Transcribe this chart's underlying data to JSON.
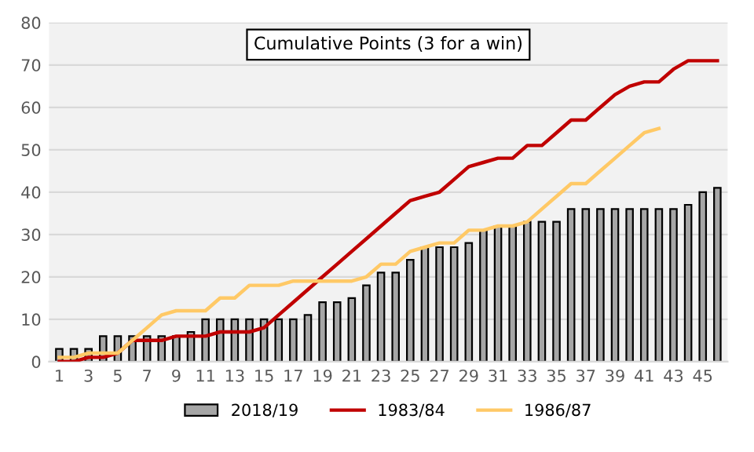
{
  "chart_data": {
    "type": "bar",
    "title": "Cumulative Points (3 for a win)",
    "categories": [
      "1",
      null,
      "3",
      null,
      "5",
      null,
      "7",
      null,
      "9",
      null,
      "11",
      null,
      "13",
      null,
      "15",
      null,
      "17",
      null,
      "19",
      null,
      "21",
      null,
      "23",
      null,
      "25",
      null,
      "27",
      null,
      "29",
      null,
      "31",
      null,
      "33",
      null,
      "35",
      null,
      "37",
      null,
      "39",
      null,
      "41",
      null,
      "43",
      null,
      "45",
      null
    ],
    "series": [
      {
        "name": "2018/19",
        "color": "#a6a6a6",
        "values": [
          3,
          3,
          3,
          6,
          6,
          6,
          6,
          6,
          6,
          7,
          10,
          10,
          10,
          10,
          10,
          10,
          10,
          11,
          14,
          14,
          15,
          18,
          21,
          21,
          24,
          27,
          27,
          27,
          28,
          31,
          32,
          32,
          33,
          33,
          33,
          36,
          36,
          36,
          36,
          36,
          36,
          36,
          36,
          37,
          40,
          41
        ]
      },
      {
        "name": "1983/84",
        "type": "line",
        "color": "#c00000",
        "values": [
          0,
          0,
          1,
          1,
          2,
          5,
          5,
          5,
          6,
          6,
          6,
          7,
          7,
          7,
          8,
          11,
          14,
          17,
          20,
          23,
          26,
          29,
          32,
          35,
          38,
          39,
          40,
          43,
          46,
          47,
          48,
          48,
          51,
          51,
          54,
          57,
          57,
          60,
          63,
          65,
          66,
          66,
          69,
          71,
          71,
          71
        ]
      },
      {
        "name": "1986/87",
        "type": "line",
        "color": "#ffc966",
        "values": [
          1,
          1,
          2,
          2,
          2,
          5,
          8,
          11,
          12,
          12,
          12,
          15,
          15,
          18,
          18,
          18,
          19,
          19,
          19,
          19,
          19,
          20,
          23,
          23,
          26,
          27,
          28,
          28,
          31,
          31,
          32,
          32,
          33,
          36,
          39,
          42,
          42,
          45,
          48,
          51,
          54,
          55,
          null,
          null,
          null,
          null
        ]
      }
    ],
    "ylim": [
      0,
      80
    ],
    "yticks": [
      0,
      10,
      20,
      30,
      40,
      50,
      60,
      70,
      80
    ],
    "grid": "y",
    "legend": "bottom"
  }
}
